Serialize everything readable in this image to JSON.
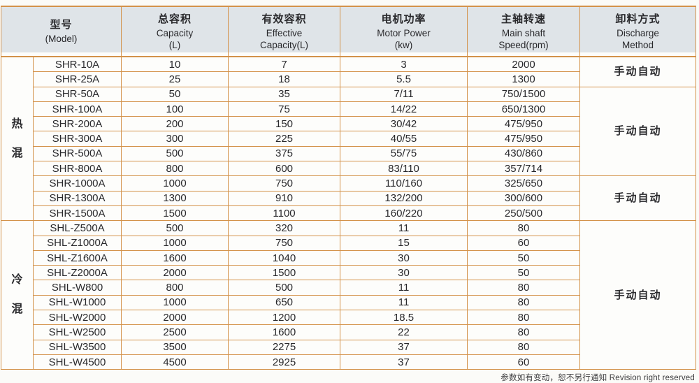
{
  "colors": {
    "border_orange": "#d3924a",
    "header_bg": "#dfe4e8",
    "text": "#29292c",
    "page_bg": "#fbfbf8"
  },
  "table": {
    "columns": [
      {
        "key": "model",
        "zh": "型号",
        "en": "(Model)",
        "colspan": 2
      },
      {
        "key": "capacity",
        "zh": "总容积",
        "en": "Capacity\n(L)",
        "colspan": 1
      },
      {
        "key": "effective-capacity",
        "zh": "有效容积",
        "en": "Effective\nCapacity(L)",
        "colspan": 1
      },
      {
        "key": "motor-power",
        "zh": "电机功率",
        "en": "Motor Power\n(kw)",
        "colspan": 1
      },
      {
        "key": "main-shaft-speed",
        "zh": "主轴转速",
        "en": "Main shaft\nSpeed(rpm)",
        "colspan": 1
      },
      {
        "key": "discharge-method",
        "zh": "卸料方式",
        "en": "Discharge\nMethod",
        "colspan": 1
      }
    ],
    "row_groups": [
      {
        "label": "热混",
        "span": 11
      },
      {
        "label": "冷混",
        "span": 10
      }
    ],
    "discharge_groups": [
      {
        "label": "手动自动",
        "span": 2
      },
      {
        "label": "手动自动",
        "span": 6
      },
      {
        "label": "手动自动",
        "span": 3
      },
      {
        "label": "手动自动",
        "span": 10
      }
    ],
    "rows": [
      [
        "SHR-10A",
        "10",
        "7",
        "3",
        "2000"
      ],
      [
        "SHR-25A",
        "25",
        "18",
        "5.5",
        "1300"
      ],
      [
        "SHR-50A",
        "50",
        "35",
        "7/11",
        "750/1500"
      ],
      [
        "SHR-100A",
        "100",
        "75",
        "14/22",
        "650/1300"
      ],
      [
        "SHR-200A",
        "200",
        "150",
        "30/42",
        "475/950"
      ],
      [
        "SHR-300A",
        "300",
        "225",
        "40/55",
        "475/950"
      ],
      [
        "SHR-500A",
        "500",
        "375",
        "55/75",
        "430/860"
      ],
      [
        "SHR-800A",
        "800",
        "600",
        "83/110",
        "357/714"
      ],
      [
        "SHR-1000A",
        "1000",
        "750",
        "110/160",
        "325/650"
      ],
      [
        "SHR-1300A",
        "1300",
        "910",
        "132/200",
        "300/600"
      ],
      [
        "SHR-1500A",
        "1500",
        "1100",
        "160/220",
        "250/500"
      ],
      [
        "SHL-Z500A",
        "500",
        "320",
        "11",
        "80"
      ],
      [
        "SHL-Z1000A",
        "1000",
        "750",
        "15",
        "60"
      ],
      [
        "SHL-Z1600A",
        "1600",
        "1040",
        "30",
        "50"
      ],
      [
        "SHL-Z2000A",
        "2000",
        "1500",
        "30",
        "50"
      ],
      [
        "SHL-W800",
        "800",
        "500",
        "11",
        "80"
      ],
      [
        "SHL-W1000",
        "1000",
        "650",
        "11",
        "80"
      ],
      [
        "SHL-W2000",
        "2000",
        "1200",
        "18.5",
        "80"
      ],
      [
        "SHL-W2500",
        "2500",
        "1600",
        "22",
        "80"
      ],
      [
        "SHL-W3500",
        "3500",
        "2275",
        "37",
        "80"
      ],
      [
        "SHL-W4500",
        "4500",
        "2925",
        "37",
        "60"
      ]
    ]
  },
  "footnote": "参数如有变动，恕不另行通知 Revision right reserved"
}
